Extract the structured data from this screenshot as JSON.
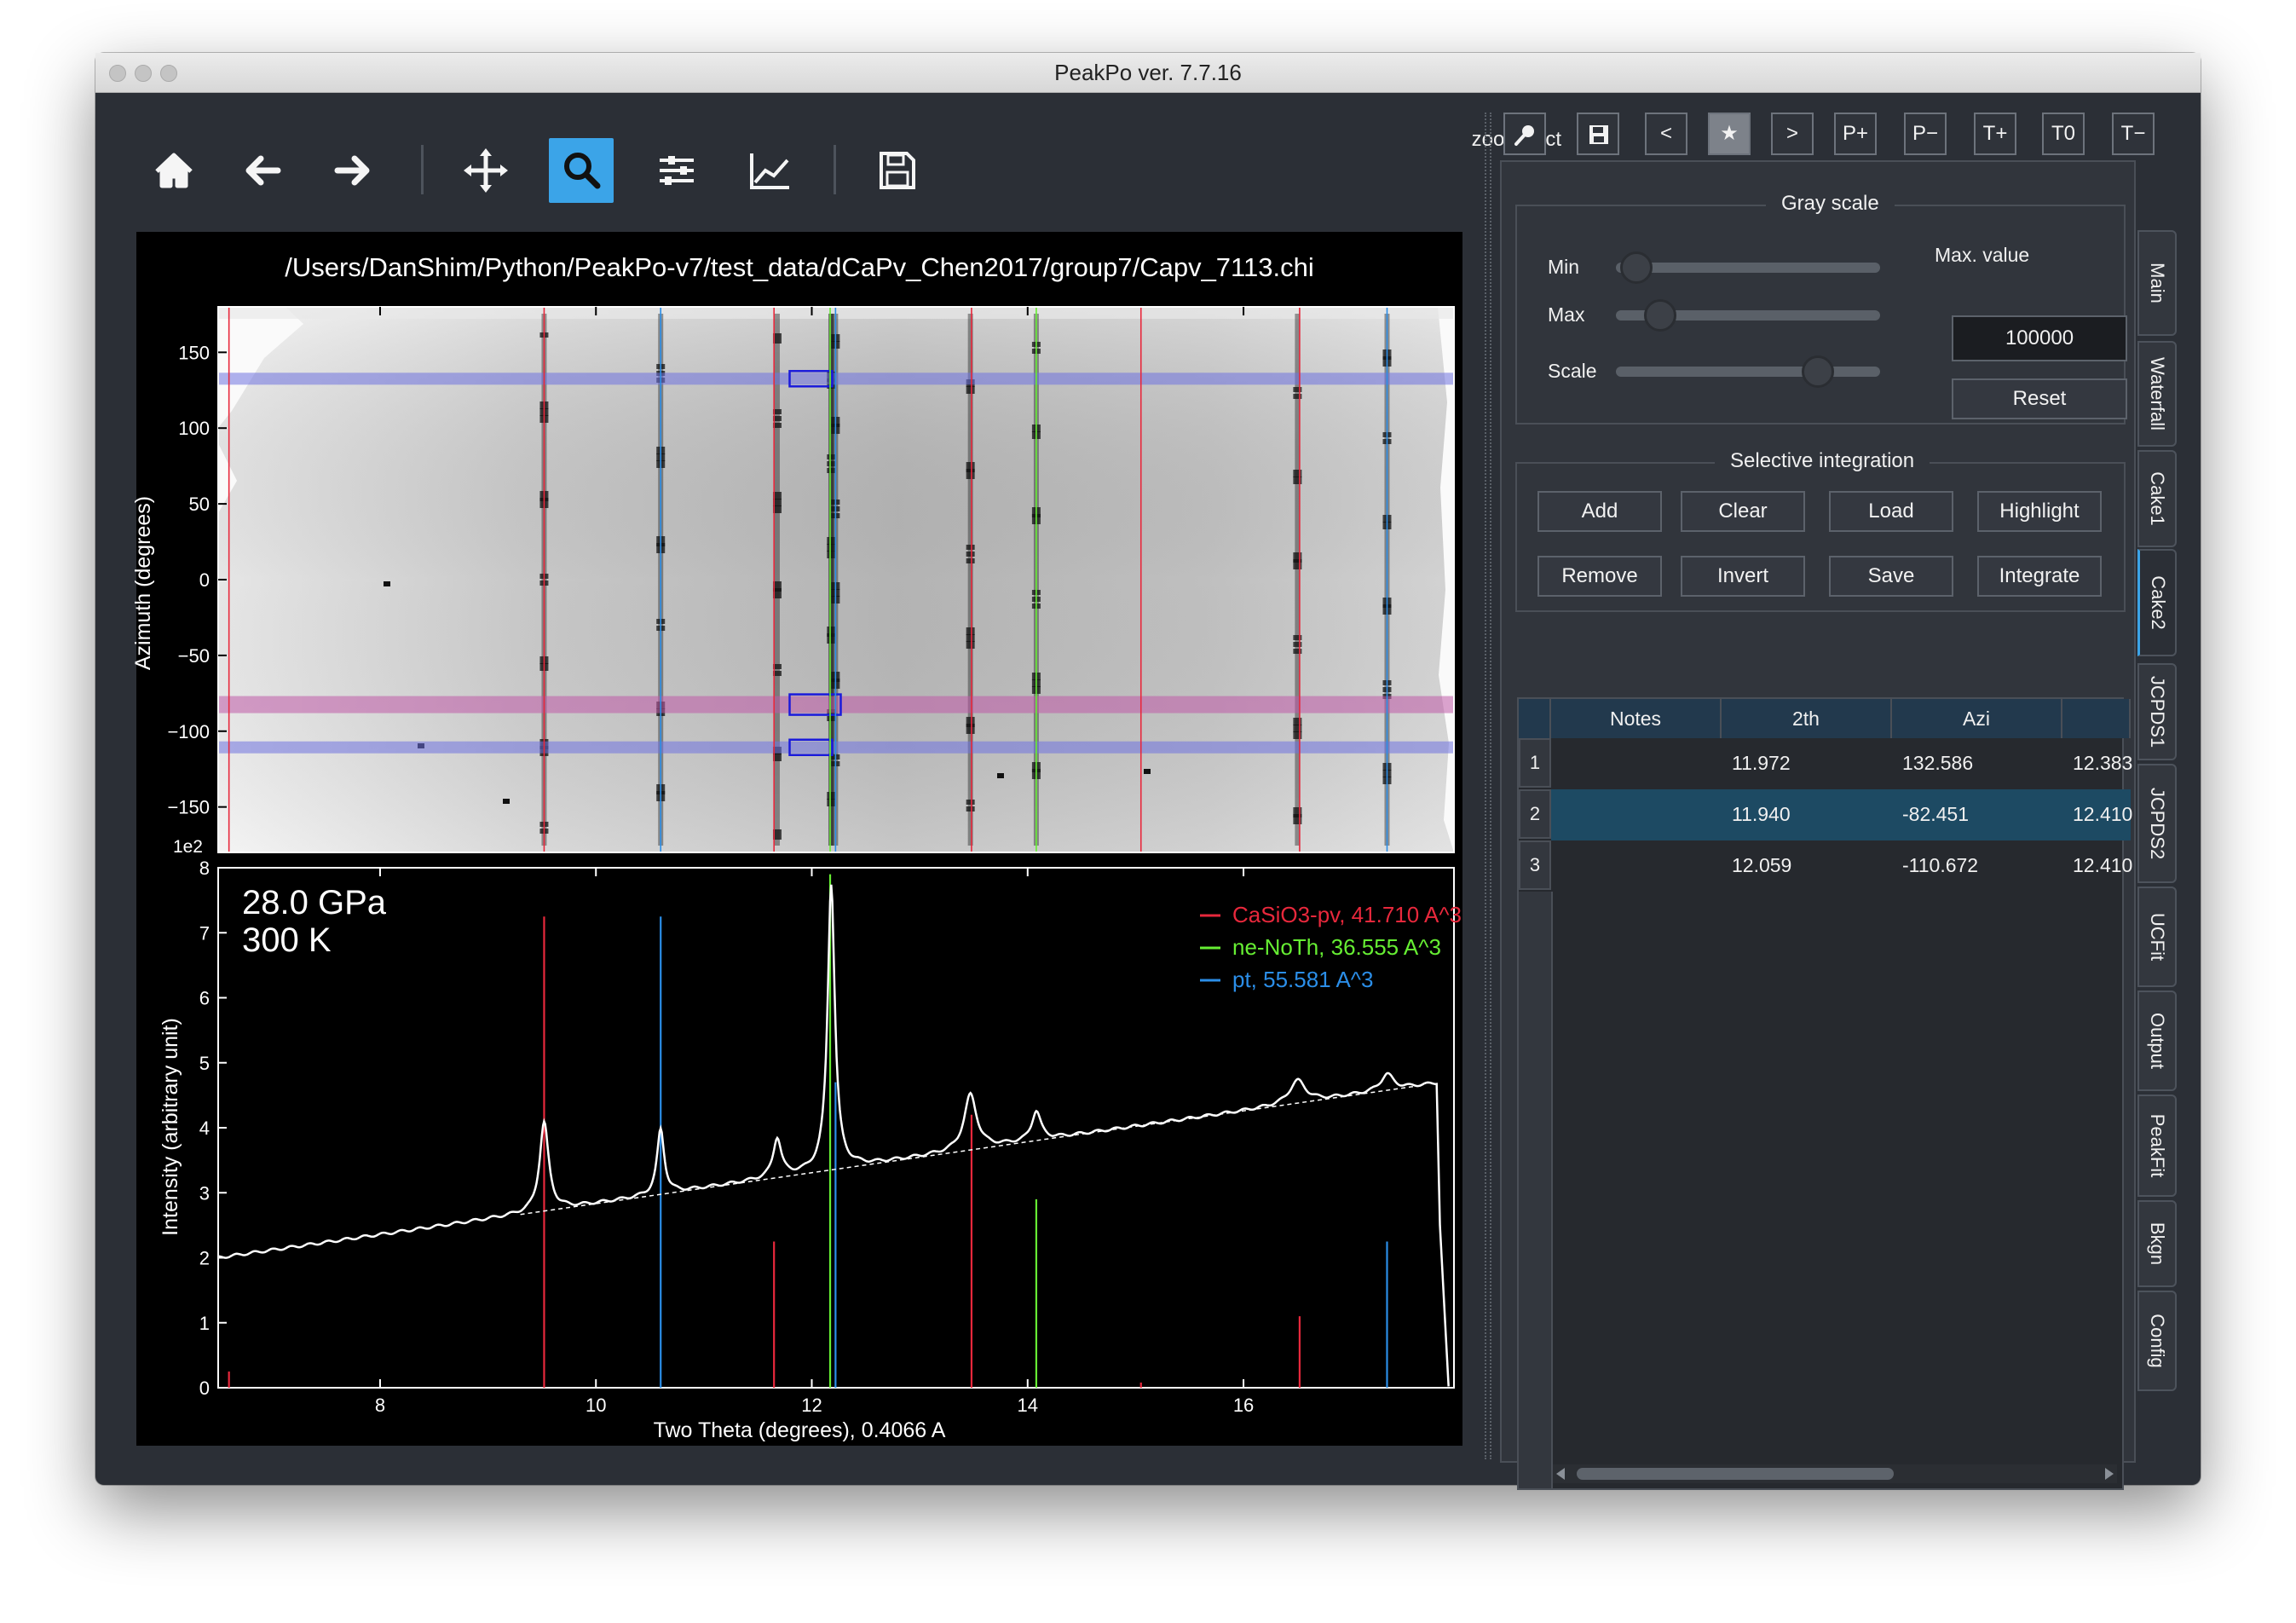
{
  "window": {
    "title": "PeakPo ver. 7.7.16"
  },
  "toolbar": {
    "buttons": [
      {
        "name": "home",
        "icon": "home-icon"
      },
      {
        "name": "back",
        "icon": "arrow-left-icon"
      },
      {
        "name": "forward",
        "icon": "arrow-right-icon"
      },
      {
        "name": "pan",
        "icon": "move-icon"
      },
      {
        "name": "zoom",
        "icon": "magnifier-icon",
        "active": true
      },
      {
        "name": "configure",
        "icon": "sliders-icon"
      },
      {
        "name": "edit-axes",
        "icon": "chart-line-icon"
      },
      {
        "name": "save",
        "icon": "floppy-icon"
      }
    ],
    "mode_label": "zoom rect"
  },
  "figure": {
    "file_path": "/Users/DanShim/Python/PeakPo-v7/test_data/dCaPv_Chen2017/group7/Capv_7113.chi",
    "cake_ylabel": "Azimuth (degrees)",
    "cake_yticks": [
      "150",
      "100",
      "50",
      "0",
      "−50",
      "−100",
      "−150"
    ],
    "cake_multiplier": "1e2",
    "pressure": "28.0 GPa",
    "temperature": "300 K",
    "xlabel": "Two Theta (degrees),  0.4066 A",
    "ylabel": "Intensity (arbitrary unit)"
  },
  "chart_data": {
    "type": "line",
    "title": "",
    "xlabel": "Two Theta (degrees),  0.4066 A",
    "ylabel": "Intensity (arbitrary unit)",
    "xlim": [
      6.5,
      17.95
    ],
    "ylim": [
      0,
      8
    ],
    "xticks": [
      8,
      10,
      12,
      14,
      16
    ],
    "yticks": [
      0,
      1,
      2,
      3,
      4,
      5,
      6,
      7,
      8
    ],
    "background": {
      "start": [
        6.5,
        2.0
      ],
      "end": [
        17.85,
        4.7
      ]
    },
    "pattern_peaks": [
      {
        "x": 9.52,
        "h": 1.37,
        "w": 0.05
      },
      {
        "x": 10.6,
        "h": 1.0,
        "w": 0.04
      },
      {
        "x": 11.68,
        "h": 0.6,
        "w": 0.045
      },
      {
        "x": 12.18,
        "h": 4.4,
        "w": 0.04
      },
      {
        "x": 13.47,
        "h": 0.85,
        "w": 0.07
      },
      {
        "x": 14.08,
        "h": 0.45,
        "w": 0.05
      },
      {
        "x": 16.5,
        "h": 0.35,
        "w": 0.09
      },
      {
        "x": 17.33,
        "h": 0.25,
        "w": 0.07
      }
    ],
    "series": [
      {
        "name": "CaSiO3-pv, 41.710 A^3",
        "color": "#e8283c",
        "sticks": [
          {
            "x": 6.6,
            "y": 0.25
          },
          {
            "x": 9.52,
            "y": 7.25
          },
          {
            "x": 11.65,
            "y": 2.25
          },
          {
            "x": 13.48,
            "y": 4.2
          },
          {
            "x": 15.05,
            "y": 0.08
          },
          {
            "x": 16.52,
            "y": 1.1
          }
        ]
      },
      {
        "name": "ne-NoTh, 36.555 A^3",
        "color": "#66ee33",
        "sticks": [
          {
            "x": 12.17,
            "y": 7.9
          },
          {
            "x": 14.08,
            "y": 2.9
          }
        ]
      },
      {
        "name": "pt, 55.581 A^3",
        "color": "#2b8ee8",
        "sticks": [
          {
            "x": 10.6,
            "y": 7.25
          },
          {
            "x": 12.22,
            "y": 4.7
          },
          {
            "x": 17.33,
            "y": 2.25
          }
        ]
      }
    ],
    "cake": {
      "ylim": [
        -180,
        180
      ],
      "selected_azimuths": [
        {
          "azi": 132.586,
          "color": "#6f72e0"
        },
        {
          "azi": -82.451,
          "color": "#c05aa8"
        },
        {
          "azi": -110.672,
          "color": "#6f72e0"
        }
      ]
    }
  },
  "tool_strip": {
    "buttons": [
      {
        "name": "pointer",
        "label": "",
        "icon": "pointer-icon"
      },
      {
        "name": "save-image",
        "label": "",
        "icon": "save-icon"
      },
      {
        "name": "prev",
        "label": "<"
      },
      {
        "name": "star",
        "label": "★",
        "active": true
      },
      {
        "name": "next",
        "label": ">"
      },
      {
        "name": "p-plus",
        "label": "P+"
      },
      {
        "name": "p-minus",
        "label": "P−"
      },
      {
        "name": "t-plus",
        "label": "T+"
      },
      {
        "name": "t-zero",
        "label": "T0"
      },
      {
        "name": "t-minus",
        "label": "T−"
      }
    ]
  },
  "gray_scale": {
    "title": "Gray scale",
    "min_label": "Min",
    "max_label": "Max",
    "scale_label": "Scale",
    "max_value_label": "Max. value",
    "max_value": "100000",
    "reset_label": "Reset",
    "min_level": 0.02,
    "max_level": 0.12,
    "scale_level": 0.8
  },
  "selective_integration": {
    "title": "Selective integration",
    "buttons_row1": [
      "Add",
      "Clear",
      "Load",
      "Highlight"
    ],
    "buttons_row2": [
      "Remove",
      "Invert",
      "Save",
      "Integrate"
    ]
  },
  "table": {
    "columns": [
      "Notes",
      "2th",
      "Azi"
    ],
    "rows": [
      {
        "index": "1",
        "notes": "",
        "twoth": "11.972",
        "azi": "132.586",
        "extra": "12.383"
      },
      {
        "index": "2",
        "notes": "",
        "twoth": "11.940",
        "azi": "-82.451",
        "extra": "12.410",
        "selected": true
      },
      {
        "index": "3",
        "notes": "",
        "twoth": "12.059",
        "azi": "-110.672",
        "extra": "12.410"
      }
    ]
  },
  "side_tabs": [
    "Main",
    "Waterfall",
    "Cake1",
    "Cake2",
    "JCPDS1",
    "JCPDS2",
    "UCFit",
    "Output",
    "PeakFit",
    "Bkgn",
    "Config"
  ],
  "active_tab": "Cake2"
}
